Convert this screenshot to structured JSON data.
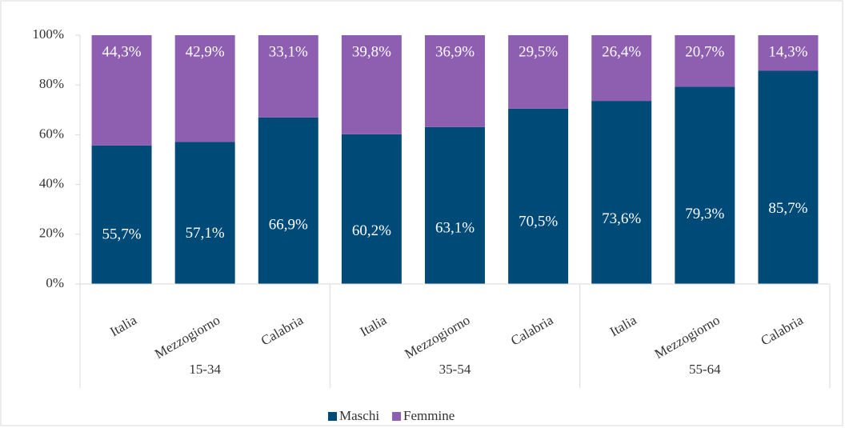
{
  "chart_data": {
    "type": "stacked_bar",
    "categories": [
      "Italia",
      "Mezzogiorno",
      "Calabria",
      "Italia",
      "Mezzogiorno",
      "Calabria",
      "Italia",
      "Mezzogiorno",
      "Calabria"
    ],
    "groups": [
      "15-34",
      "35-54",
      "55-64"
    ],
    "series": [
      {
        "name": "Maschi",
        "color": "#004a77",
        "values": [
          55.7,
          57.1,
          66.9,
          60.2,
          63.1,
          70.5,
          73.6,
          79.3,
          85.7
        ],
        "value_labels": [
          "55,7%",
          "57,1%",
          "66,9%",
          "60,2%",
          "63,1%",
          "70,5%",
          "73,6%",
          "79,3%",
          "85,7%"
        ]
      },
      {
        "name": "Femmine",
        "color": "#8e5fb0",
        "values": [
          44.3,
          42.9,
          33.1,
          39.8,
          36.9,
          29.5,
          26.4,
          20.7,
          14.3
        ],
        "value_labels": [
          "44,3%",
          "42,9%",
          "33,1%",
          "39,8%",
          "36,9%",
          "29,5%",
          "26,4%",
          "20,7%",
          "14,3%"
        ]
      }
    ],
    "ylim": [
      0,
      100
    ],
    "yticks": [
      {
        "value": 0,
        "label": "0%"
      },
      {
        "value": 20,
        "label": "20%"
      },
      {
        "value": 40,
        "label": "40%"
      },
      {
        "value": 60,
        "label": "60%"
      },
      {
        "value": 80,
        "label": "80%"
      },
      {
        "value": 100,
        "label": "100%"
      }
    ],
    "grid": false,
    "legend": "bottom"
  }
}
